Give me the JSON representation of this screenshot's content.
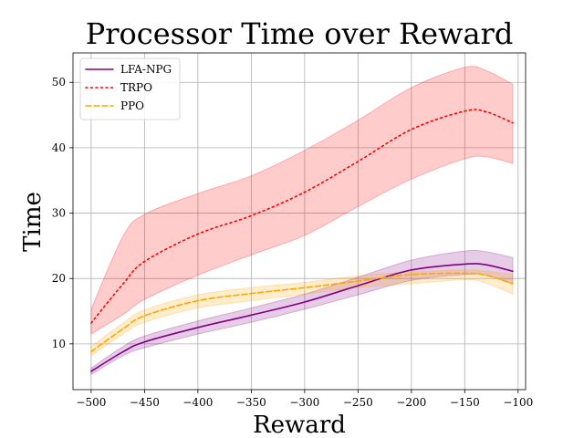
{
  "chart_data": {
    "type": "line",
    "title": "Processor Time over Reward",
    "xlabel": "Reward",
    "ylabel": "Time",
    "xlim": [
      -517,
      -93
    ],
    "ylim": [
      3,
      54.5
    ],
    "xticks": [
      -500,
      -450,
      -400,
      -350,
      -300,
      -250,
      -200,
      -150,
      -100
    ],
    "yticks": [
      10,
      20,
      30,
      40,
      50
    ],
    "grid": true,
    "legend_position": "top-left",
    "series": [
      {
        "name": "LFA-NPG",
        "color": "#800080",
        "style": "solid",
        "x": [
          -500,
          -470,
          -450,
          -400,
          -350,
          -300,
          -250,
          -200,
          -150,
          -130,
          -105
        ],
        "y": [
          5.8,
          8.8,
          10.3,
          12.5,
          14.4,
          16.4,
          18.9,
          21.3,
          22.2,
          22.1,
          21.1
        ],
        "lower": [
          5.3,
          8.2,
          9.4,
          11.5,
          13.3,
          15.3,
          17.5,
          19.7,
          20.6,
          20.5,
          19.2
        ],
        "upper": [
          6.3,
          9.6,
          11.2,
          13.5,
          15.5,
          17.6,
          20.2,
          22.8,
          24.2,
          24.1,
          23.2
        ]
      },
      {
        "name": "TRPO",
        "color": "#ff0000",
        "style": "dotted",
        "x": [
          -500,
          -470,
          -450,
          -400,
          -350,
          -300,
          -250,
          -200,
          -150,
          -130,
          -105
        ],
        "y": [
          13.2,
          19.2,
          22.6,
          26.8,
          29.6,
          33.2,
          37.9,
          42.8,
          45.6,
          45.5,
          43.8
        ],
        "lower": [
          11.5,
          14.5,
          16.8,
          20.5,
          23.6,
          26.6,
          31.0,
          35.2,
          38.3,
          38.6,
          37.6
        ],
        "upper": [
          15.3,
          26.5,
          29.8,
          33.0,
          35.7,
          39.6,
          44.2,
          49.2,
          52.3,
          51.8,
          49.7
        ]
      },
      {
        "name": "PPO",
        "color": "#ffa500",
        "style": "dashed",
        "x": [
          -500,
          -470,
          -450,
          -400,
          -350,
          -300,
          -250,
          -200,
          -150,
          -130,
          -105
        ],
        "y": [
          8.8,
          12.3,
          14.3,
          16.6,
          17.7,
          18.6,
          19.6,
          20.6,
          20.8,
          20.5,
          19.2
        ],
        "lower": [
          8.2,
          11.5,
          13.3,
          15.5,
          16.6,
          17.6,
          18.6,
          19.2,
          19.8,
          19.3,
          17.6
        ],
        "upper": [
          9.6,
          13.2,
          15.2,
          17.5,
          18.6,
          19.4,
          20.4,
          21.0,
          21.3,
          21.1,
          20.6
        ]
      }
    ]
  }
}
